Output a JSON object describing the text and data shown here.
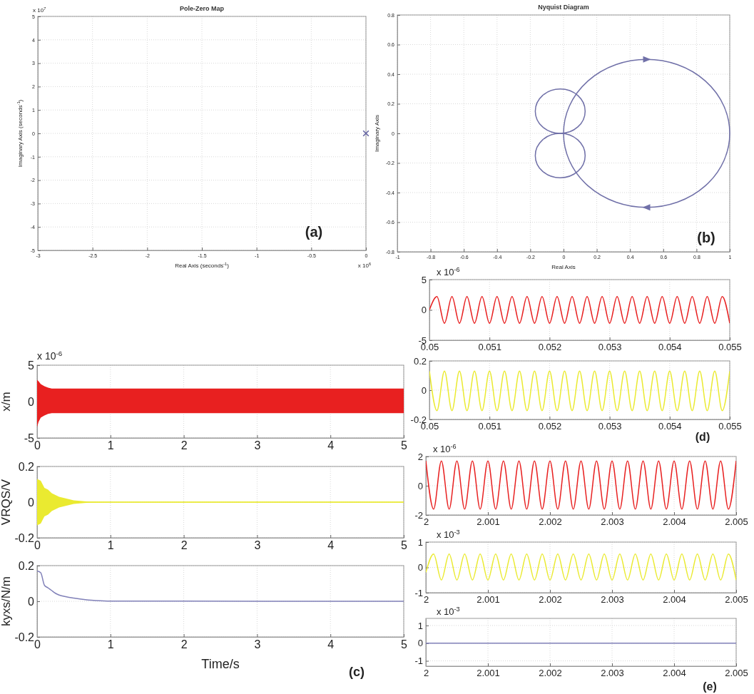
{
  "chart_data": [
    {
      "type": "scatter",
      "title": "Pole-Zero Map",
      "xlabel": "Real Axis (seconds$^{-1}$)",
      "ylabel": "Imaginary Axis (seconds$^{-1}$)",
      "annotations": [
        "x 10$^{7}$",
        "x 10$^{6}$",
        "(a)"
      ],
      "xlim": [
        -3,
        0
      ],
      "xticks": [
        -3,
        -2.5,
        -2,
        -1.5,
        -1,
        -0.5,
        0
      ],
      "ylim": [
        -5,
        5
      ],
      "yticks": [
        -5,
        -4,
        -3,
        -2,
        -1,
        0,
        1,
        2,
        3,
        4,
        5
      ],
      "grid": true,
      "marker": "cross",
      "series": [
        {
          "color": "#6060a0",
          "x": [
            0
          ],
          "values": [
            0
          ]
        }
      ]
    },
    {
      "type": "line",
      "title": "Nyquist Diagram",
      "xlabel": "Real Axis",
      "ylabel": "Imaginary Axis",
      "annotations": [
        "(b)"
      ],
      "xlim": [
        -1,
        1
      ],
      "xticks": [
        -1,
        -0.8,
        -0.6,
        -0.4,
        -0.2,
        0,
        0.2,
        0.4,
        0.6,
        0.8,
        1
      ],
      "ylim": [
        -0.8,
        0.8
      ],
      "yticks": [
        -0.8,
        -0.6,
        -0.4,
        -0.2,
        0,
        0.2,
        0.4,
        0.6,
        0.8
      ],
      "grid": true
    },
    {
      "type": "line",
      "ylabel": "x/m",
      "annotations": [
        "x 10$^{-6}$"
      ],
      "xlim": [
        0,
        5
      ],
      "xticks": [
        0,
        1,
        2,
        3,
        4,
        5
      ],
      "ylim": [
        -5,
        5
      ],
      "yticks": [
        -5,
        0,
        5
      ],
      "grid": true,
      "series": [
        {
          "color": "#e82020",
          "x": [
            0,
            0.02,
            0.05,
            0.1,
            0.15,
            0.2,
            0.3,
            0.5,
            1,
            2,
            3,
            4,
            5
          ],
          "values": [
            0,
            0,
            0,
            0,
            0,
            0,
            0,
            0,
            0,
            0,
            0,
            0,
            0
          ],
          "upper": [
            3,
            2.8,
            2.4,
            2.1,
            1.9,
            1.8,
            1.8,
            1.8,
            1.8,
            1.8,
            1.8,
            1.8,
            1.8
          ],
          "lower": [
            -3.5,
            -2.8,
            -2.2,
            -1.9,
            -1.7,
            -1.6,
            -1.6,
            -1.6,
            -1.6,
            -1.6,
            -1.6,
            -1.6,
            -1.6
          ]
        }
      ]
    },
    {
      "type": "line",
      "ylabel": "VRQS/V",
      "xlim": [
        0,
        5
      ],
      "xticks": [
        0,
        1,
        2,
        3,
        4,
        5
      ],
      "ylim": [
        -0.2,
        0.2
      ],
      "yticks": [
        -0.2,
        0,
        0.2
      ],
      "grid": true,
      "series": [
        {
          "color": "#eaea30",
          "x": [
            0,
            0.05,
            0.1,
            0.15,
            0.2,
            0.3,
            0.5,
            0.7,
            1,
            5
          ],
          "values": [
            0,
            0,
            0,
            0,
            0,
            0,
            0,
            0,
            0,
            0
          ],
          "upper": [
            0.13,
            0.12,
            0.08,
            0.07,
            0.05,
            0.03,
            0.01,
            0.003,
            0.002,
            0.002
          ],
          "lower": [
            -0.13,
            -0.12,
            -0.08,
            -0.07,
            -0.05,
            -0.03,
            -0.01,
            -0.003,
            -0.002,
            -0.002
          ]
        }
      ]
    },
    {
      "type": "line",
      "xlabel": "Time/s",
      "ylabel": "kyxs/N/m",
      "annotations": [
        "(c)"
      ],
      "xlim": [
        0,
        5
      ],
      "xticks": [
        0,
        1,
        2,
        3,
        4,
        5
      ],
      "ylim": [
        -0.2,
        0.2
      ],
      "yticks": [
        -0.2,
        0,
        0.2
      ],
      "grid": true,
      "series": [
        {
          "color": "#8080b8",
          "x": [
            0,
            0.05,
            0.1,
            0.15,
            0.2,
            0.25,
            0.3,
            0.4,
            0.5,
            0.6,
            0.7,
            0.8,
            1,
            5
          ],
          "values": [
            0.17,
            0.16,
            0.09,
            0.075,
            0.06,
            0.045,
            0.035,
            0.025,
            0.018,
            0.012,
            0.007,
            0.004,
            0.001,
            0
          ]
        }
      ]
    },
    {
      "type": "line",
      "annotations": [
        "x 10$^{-6}$"
      ],
      "xlim": [
        0.05,
        0.055
      ],
      "xticks": [
        0.05,
        0.051,
        0.052,
        0.053,
        0.054,
        0.055
      ],
      "ylim": [
        -5,
        5
      ],
      "yticks": [
        -5,
        0,
        5
      ],
      "grid": true,
      "x": [
        0.05,
        0.050125,
        0.05025,
        0.050375,
        0.0505,
        0.050625,
        0.05075,
        0.050875,
        0.051,
        0.051125,
        0.05125,
        0.051375,
        0.0515,
        0.051625,
        0.05175,
        0.051875,
        0.052,
        0.052125,
        0.05225,
        0.052375,
        0.0525,
        0.052625,
        0.05275,
        0.052875,
        0.053,
        0.053125,
        0.05325,
        0.053375,
        0.0535,
        0.053625,
        0.05375,
        0.053875,
        0.054,
        0.054125,
        0.05425,
        0.054375,
        0.0545,
        0.054625,
        0.05475,
        0.054875,
        0.055
      ],
      "series": [
        {
          "color": "#e82020",
          "values": [
            0,
            2.2,
            -2.2,
            2.2,
            -2.2,
            2.2,
            -2.2,
            2.2,
            -2.2,
            2.2,
            -2.2,
            2.2,
            -2.2,
            2.2,
            -2.2,
            2.2,
            -2.2,
            2.2,
            -2.2,
            2.2,
            -2.2,
            2.2,
            -2.2,
            2.2,
            -2.2,
            2.2,
            -2.2,
            2.2,
            -2.2,
            2.2,
            -2.2,
            2.2,
            -2.2,
            2.2,
            -2.2,
            2.2,
            -2.2,
            2.2,
            -2.2,
            2.2,
            -2.2
          ]
        }
      ]
    },
    {
      "type": "line",
      "annotations": [
        "(d)"
      ],
      "xlim": [
        0.05,
        0.055
      ],
      "xticks": [
        0.05,
        0.051,
        0.052,
        0.053,
        0.054,
        0.055
      ],
      "ylim": [
        -0.2,
        0.2
      ],
      "yticks": [
        -0.2,
        0,
        0.2
      ],
      "grid": true,
      "x": [
        0.05,
        0.050125,
        0.05025,
        0.050375,
        0.0505,
        0.050625,
        0.05075,
        0.050875,
        0.051,
        0.051125,
        0.05125,
        0.051375,
        0.0515,
        0.051625,
        0.05175,
        0.051875,
        0.052,
        0.052125,
        0.05225,
        0.052375,
        0.0525,
        0.052625,
        0.05275,
        0.052875,
        0.053,
        0.053125,
        0.05325,
        0.053375,
        0.0535,
        0.053625,
        0.05375,
        0.053875,
        0.054,
        0.054125,
        0.05425,
        0.054375,
        0.0545,
        0.054625,
        0.05475,
        0.054875,
        0.055
      ],
      "series": [
        {
          "color": "#eaea30",
          "values": [
            0.13,
            -0.14,
            0.13,
            -0.14,
            0.13,
            -0.14,
            0.13,
            -0.14,
            0.13,
            -0.14,
            0.13,
            -0.14,
            0.13,
            -0.14,
            0.13,
            -0.14,
            0.13,
            -0.14,
            0.13,
            -0.14,
            0.13,
            -0.14,
            0.13,
            -0.14,
            0.13,
            -0.14,
            0.13,
            -0.14,
            0.13,
            -0.14,
            0.13,
            -0.14,
            0.13,
            -0.14,
            0.13,
            -0.14,
            0.13,
            -0.14,
            0.13,
            -0.14,
            0.13
          ]
        }
      ]
    },
    {
      "type": "line",
      "annotations": [
        "x 10$^{-6}$"
      ],
      "xlim": [
        2,
        2.005
      ],
      "xticks": [
        2,
        2.001,
        2.002,
        2.003,
        2.004,
        2.005
      ],
      "ylim": [
        -2,
        2
      ],
      "yticks": [
        -2,
        0,
        2
      ],
      "grid": true,
      "x": [
        2,
        2.000125,
        2.00025,
        2.000375,
        2.0005,
        2.000625,
        2.00075,
        2.000875,
        2.001,
        2.001125,
        2.00125,
        2.001375,
        2.0015,
        2.001625,
        2.00175,
        2.001875,
        2.002,
        2.002125,
        2.00225,
        2.002375,
        2.0025,
        2.002625,
        2.00275,
        2.002875,
        2.003,
        2.003125,
        2.00325,
        2.003375,
        2.0035,
        2.003625,
        2.00375,
        2.003875,
        2.004,
        2.004125,
        2.00425,
        2.004375,
        2.0045,
        2.004625,
        2.00475,
        2.004875,
        2.005
      ],
      "series": [
        {
          "color": "#e82020",
          "values": [
            1.7,
            -1.6,
            1.7,
            -1.6,
            1.7,
            -1.6,
            1.7,
            -1.6,
            1.7,
            -1.6,
            1.7,
            -1.6,
            1.7,
            -1.6,
            1.7,
            -1.6,
            1.7,
            -1.6,
            1.7,
            -1.6,
            1.7,
            -1.6,
            1.7,
            -1.6,
            1.7,
            -1.6,
            1.7,
            -1.6,
            1.7,
            -1.6,
            1.7,
            -1.6,
            1.7,
            -1.6,
            1.7,
            -1.6,
            1.7,
            -1.6,
            1.7,
            -1.6,
            1.7
          ]
        }
      ]
    },
    {
      "type": "line",
      "annotations": [
        "x 10$^{-3}$"
      ],
      "xlim": [
        2,
        2.005
      ],
      "xticks": [
        2,
        2.001,
        2.002,
        2.003,
        2.004,
        2.005
      ],
      "ylim": [
        -1,
        1
      ],
      "yticks": [
        -1,
        0,
        1
      ],
      "grid": true,
      "x": [
        2,
        2.000125,
        2.00025,
        2.000375,
        2.0005,
        2.000625,
        2.00075,
        2.000875,
        2.001,
        2.001125,
        2.00125,
        2.001375,
        2.0015,
        2.001625,
        2.00175,
        2.001875,
        2.002,
        2.002125,
        2.00225,
        2.002375,
        2.0025,
        2.002625,
        2.00275,
        2.002875,
        2.003,
        2.003125,
        2.00325,
        2.003375,
        2.0035,
        2.003625,
        2.00375,
        2.003875,
        2.004,
        2.004125,
        2.00425,
        2.004375,
        2.0045,
        2.004625,
        2.00475,
        2.004875,
        2.005
      ],
      "series": [
        {
          "color": "#eaea30",
          "values": [
            -0.2,
            0.53,
            -0.5,
            0.53,
            -0.5,
            0.53,
            -0.5,
            0.53,
            -0.5,
            0.53,
            -0.5,
            0.53,
            -0.5,
            0.53,
            -0.5,
            0.53,
            -0.5,
            0.53,
            -0.5,
            0.53,
            -0.5,
            0.53,
            -0.5,
            0.53,
            -0.5,
            0.53,
            -0.5,
            0.53,
            -0.5,
            0.53,
            -0.5,
            0.53,
            -0.5,
            0.53,
            -0.5,
            0.53,
            -0.5,
            0.53,
            -0.5,
            0.53,
            -0.5
          ]
        }
      ]
    },
    {
      "type": "line",
      "annotations": [
        "x 10$^{-3}$",
        "(e)"
      ],
      "xlim": [
        2,
        2.005
      ],
      "xticks": [
        2,
        2.001,
        2.002,
        2.003,
        2.004,
        2.005
      ],
      "ylim": [
        -1.3,
        1.4
      ],
      "yticks": [
        -1,
        0,
        1
      ],
      "grid": true,
      "series": [
        {
          "color": "#8080b8",
          "x": [
            2,
            2.005
          ],
          "values": [
            0,
            0
          ]
        }
      ]
    }
  ]
}
